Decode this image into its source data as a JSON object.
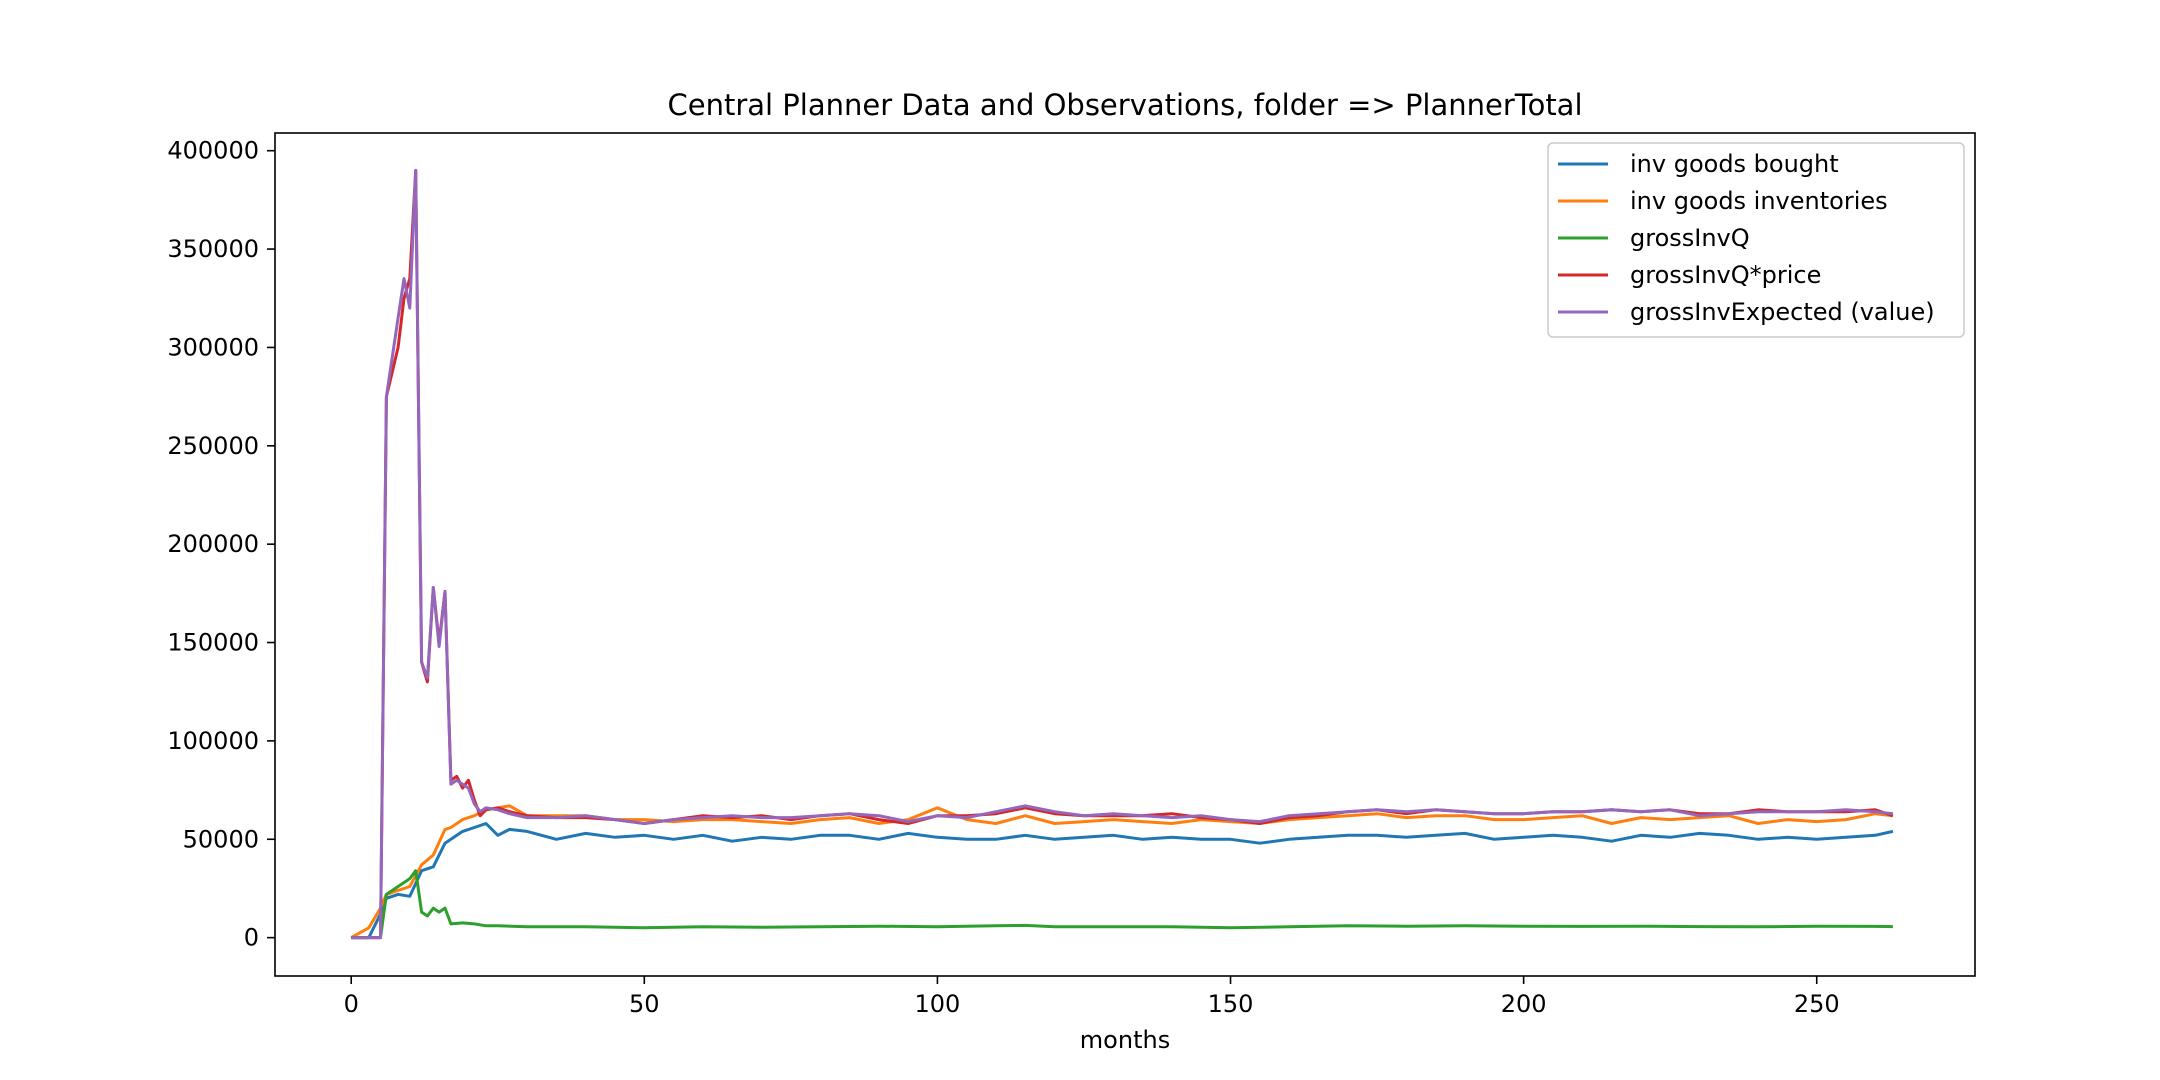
{
  "chart_data": {
    "type": "line",
    "title": "Central Planner Data and Observations, folder => PlannerTotal",
    "xlabel": "months",
    "ylabel": "",
    "xlim": [
      -13,
      277
    ],
    "ylim": [
      -19500,
      409000
    ],
    "xticks": [
      0,
      50,
      100,
      150,
      200,
      250
    ],
    "yticks": [
      0,
      50000,
      100000,
      150000,
      200000,
      250000,
      300000,
      350000,
      400000
    ],
    "grid": false,
    "legend_position": "top-right",
    "series": [
      {
        "name": "inv goods bought",
        "color": "#1f77b4",
        "x": [
          0,
          3,
          5,
          6,
          8,
          10,
          12,
          14,
          16,
          17,
          19,
          21,
          23,
          25,
          27,
          30,
          35,
          40,
          45,
          50,
          55,
          60,
          65,
          70,
          75,
          80,
          85,
          90,
          95,
          100,
          105,
          110,
          115,
          120,
          125,
          130,
          135,
          140,
          145,
          150,
          155,
          160,
          165,
          170,
          175,
          180,
          185,
          190,
          195,
          200,
          205,
          210,
          215,
          220,
          225,
          230,
          235,
          240,
          245,
          250,
          255,
          260,
          263
        ],
        "y": [
          0,
          0,
          12000,
          20000,
          22000,
          21000,
          34000,
          36000,
          48000,
          50000,
          54000,
          56000,
          58000,
          52000,
          55000,
          54000,
          50000,
          53000,
          51000,
          52000,
          50000,
          52000,
          49000,
          51000,
          50000,
          52000,
          52000,
          50000,
          53000,
          51000,
          50000,
          50000,
          52000,
          50000,
          51000,
          52000,
          50000,
          51000,
          50000,
          50000,
          48000,
          50000,
          51000,
          52000,
          52000,
          51000,
          52000,
          53000,
          50000,
          51000,
          52000,
          51000,
          49000,
          52000,
          51000,
          53000,
          52000,
          50000,
          51000,
          50000,
          51000,
          52000,
          54000
        ]
      },
      {
        "name": "inv goods inventories",
        "color": "#ff7f0e",
        "x": [
          0,
          3,
          5,
          6,
          8,
          10,
          12,
          14,
          16,
          17,
          19,
          21,
          23,
          25,
          27,
          30,
          35,
          40,
          45,
          50,
          55,
          60,
          65,
          70,
          75,
          80,
          85,
          90,
          95,
          100,
          105,
          110,
          115,
          120,
          125,
          130,
          135,
          140,
          145,
          150,
          155,
          160,
          165,
          170,
          175,
          180,
          185,
          190,
          195,
          200,
          205,
          210,
          215,
          220,
          225,
          230,
          235,
          240,
          245,
          250,
          255,
          260,
          263
        ],
        "y": [
          0,
          5000,
          15000,
          22000,
          24000,
          26000,
          37000,
          42000,
          55000,
          56000,
          60000,
          62000,
          65000,
          66000,
          67000,
          62000,
          62000,
          62000,
          60000,
          60000,
          59000,
          60000,
          60000,
          59000,
          58000,
          60000,
          61000,
          58000,
          60000,
          66000,
          60000,
          58000,
          62000,
          58000,
          59000,
          60000,
          59000,
          58000,
          60000,
          59000,
          58000,
          60000,
          61000,
          62000,
          63000,
          61000,
          62000,
          62000,
          60000,
          60000,
          61000,
          62000,
          58000,
          61000,
          60000,
          61000,
          62000,
          58000,
          60000,
          59000,
          60000,
          63000,
          62000
        ]
      },
      {
        "name": "grossInvQ",
        "color": "#2ca02c",
        "x": [
          0,
          3,
          5,
          6,
          8,
          10,
          11,
          12,
          13,
          14,
          15,
          16,
          17,
          19,
          21,
          23,
          25,
          30,
          40,
          50,
          60,
          70,
          80,
          90,
          100,
          110,
          115,
          120,
          130,
          140,
          150,
          160,
          170,
          180,
          190,
          200,
          210,
          220,
          230,
          240,
          250,
          260,
          263
        ],
        "y": [
          0,
          0,
          0,
          22000,
          26000,
          30000,
          34000,
          13000,
          11000,
          15000,
          13000,
          15000,
          7000,
          7500,
          7000,
          6000,
          6000,
          5500,
          5500,
          5000,
          5500,
          5300,
          5500,
          5800,
          5500,
          6000,
          6200,
          5500,
          5500,
          5500,
          5000,
          5500,
          6000,
          5800,
          6000,
          5800,
          5700,
          5800,
          5600,
          5500,
          5800,
          5700,
          5600
        ]
      },
      {
        "name": "grossInvQ*price",
        "color": "#d62728",
        "x": [
          0,
          3,
          5,
          6,
          8,
          9,
          10,
          11,
          12,
          13,
          14,
          15,
          16,
          17,
          18,
          19,
          20,
          21,
          22,
          23,
          25,
          27,
          30,
          35,
          40,
          45,
          50,
          55,
          60,
          65,
          70,
          75,
          80,
          85,
          90,
          95,
          100,
          105,
          110,
          115,
          120,
          125,
          130,
          135,
          140,
          145,
          150,
          155,
          160,
          165,
          170,
          175,
          180,
          185,
          190,
          195,
          200,
          205,
          210,
          215,
          220,
          225,
          230,
          235,
          240,
          245,
          250,
          255,
          260,
          263
        ],
        "y": [
          0,
          0,
          0,
          275000,
          300000,
          325000,
          335000,
          390000,
          140000,
          130000,
          178000,
          150000,
          176000,
          80000,
          82000,
          76000,
          80000,
          70000,
          62000,
          65000,
          66000,
          64000,
          62000,
          61000,
          61000,
          60000,
          58000,
          60000,
          62000,
          61000,
          62000,
          60000,
          62000,
          63000,
          60000,
          58000,
          62000,
          62000,
          63000,
          66000,
          63000,
          62000,
          62000,
          62000,
          63000,
          61000,
          60000,
          58000,
          61000,
          62000,
          64000,
          65000,
          63000,
          65000,
          64000,
          63000,
          63000,
          64000,
          64000,
          65000,
          64000,
          65000,
          63000,
          63000,
          65000,
          64000,
          64000,
          64000,
          65000,
          62000
        ]
      },
      {
        "name": "grossInvExpected (value)",
        "color": "#9467bd",
        "x": [
          0,
          3,
          4,
          5,
          6,
          8,
          9,
          10,
          11,
          12,
          13,
          14,
          15,
          16,
          17,
          18,
          19,
          20,
          21,
          22,
          23,
          25,
          27,
          30,
          35,
          40,
          45,
          50,
          55,
          60,
          65,
          70,
          75,
          80,
          85,
          90,
          95,
          100,
          105,
          110,
          115,
          120,
          125,
          130,
          135,
          140,
          145,
          150,
          155,
          160,
          165,
          170,
          175,
          180,
          185,
          190,
          195,
          200,
          205,
          210,
          215,
          220,
          225,
          230,
          235,
          240,
          245,
          250,
          255,
          260,
          263
        ],
        "y": [
          0,
          0,
          0,
          0,
          275000,
          315000,
          335000,
          320000,
          390000,
          140000,
          132000,
          178000,
          148000,
          176000,
          78000,
          80000,
          78000,
          76000,
          68000,
          64000,
          66000,
          65000,
          63000,
          61000,
          61000,
          62000,
          60000,
          58000,
          60000,
          61000,
          62000,
          61000,
          61000,
          62000,
          63000,
          62000,
          59000,
          62000,
          61000,
          64000,
          67000,
          64000,
          62000,
          63000,
          62000,
          61000,
          62000,
          60000,
          59000,
          62000,
          63000,
          64000,
          65000,
          64000,
          65000,
          64000,
          63000,
          63000,
          64000,
          64000,
          65000,
          64000,
          65000,
          62000,
          63000,
          64000,
          64000,
          64000,
          65000,
          64000,
          63000
        ]
      }
    ]
  }
}
